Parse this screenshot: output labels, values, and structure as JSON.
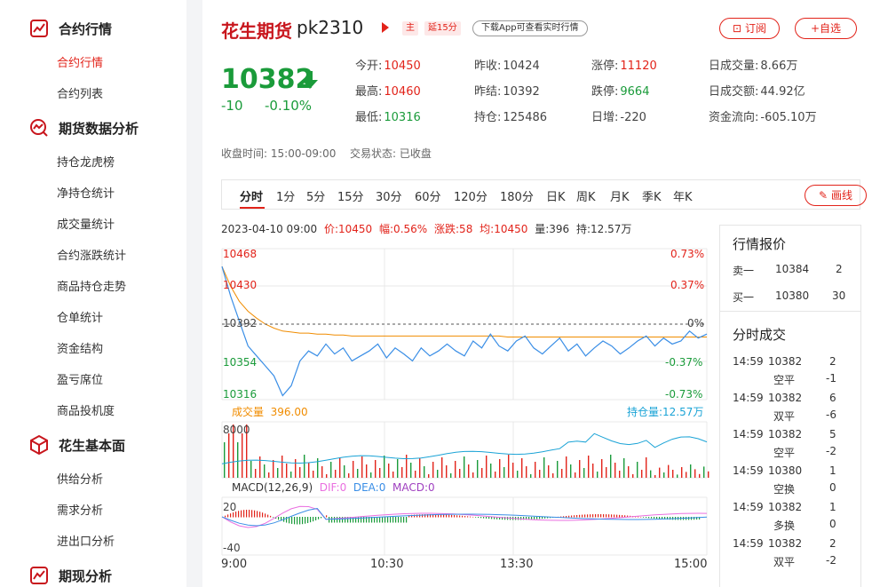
{
  "sidebar": {
    "sections": [
      {
        "title": "合约行情",
        "items": [
          "合约行情",
          "合约列表"
        ]
      },
      {
        "title": "期货数据分析",
        "items": [
          "持仓龙虎榜",
          "净持仓统计",
          "成交量统计",
          "合约涨跌统计",
          "商品持仓走势",
          "仓单统计",
          "资金结构",
          "盈亏席位",
          "商品投机度"
        ]
      },
      {
        "title": "花生基本面",
        "items": [
          "供给分析",
          "需求分析",
          "进出口分析"
        ]
      },
      {
        "title": "期现分析",
        "items": []
      }
    ],
    "active_item": "合约行情"
  },
  "header": {
    "name": "花生期货",
    "code": "pk2310",
    "tag_main": "主",
    "tag_delay": "延15分",
    "app_pill": "下载App可查看实时行情",
    "subscribe_label": "订阅",
    "watchlist_label": "+自选"
  },
  "quote": {
    "price": "10382",
    "change": "-10",
    "change_pct": "-0.10%",
    "fields": [
      {
        "label": "今开:",
        "value": "10450",
        "color": "red"
      },
      {
        "label": "昨收:",
        "value": "10424",
        "color": "normal"
      },
      {
        "label": "涨停:",
        "value": "11120",
        "color": "red"
      },
      {
        "label": "日成交量:",
        "value": "8.66万",
        "color": "normal"
      },
      {
        "label": "最高:",
        "value": "10460",
        "color": "red"
      },
      {
        "label": "昨结:",
        "value": "10392",
        "color": "normal"
      },
      {
        "label": "跌停:",
        "value": "9664",
        "color": "green"
      },
      {
        "label": "日成交额:",
        "value": "44.92亿",
        "color": "normal"
      },
      {
        "label": "最低:",
        "value": "10316",
        "color": "green"
      },
      {
        "label": "持仓:",
        "value": "125486",
        "color": "normal"
      },
      {
        "label": "日增:",
        "value": "-220",
        "color": "normal"
      },
      {
        "label": "资金流向:",
        "value": "-605.10万",
        "color": "normal"
      }
    ],
    "close_time_label": "收盘时间:",
    "close_time": "15:00-09:00",
    "trade_status_label": "交易状态:",
    "trade_status": "已收盘"
  },
  "tabs": [
    "分时",
    "1分",
    "5分",
    "15分",
    "30分",
    "60分",
    "120分",
    "180分",
    "日K",
    "周K",
    "月K",
    "季K",
    "年K"
  ],
  "active_tab": "分时",
  "draw_label": "画线",
  "infoline": {
    "time": "2023-04-10 09:00",
    "price": "价:10450",
    "amp": "幅:0.56%",
    "chg": "涨跌:58",
    "avg": "均:10450",
    "vol": "量:396",
    "oi": "持:12.57万"
  },
  "chart_labels": {
    "p1": "10468",
    "p2": "10430",
    "p3": "10392",
    "p4": "10354",
    "p5": "10316",
    "r1": "0.73%",
    "r2": "0.37%",
    "r3": "0%",
    "r4": "-0.37%",
    "r5": "-0.73%",
    "vol_label": "成交量",
    "vol_value": "396.00",
    "oi_label": "持仓量:",
    "oi_value": "12.57万",
    "vol_max": "8000",
    "macd": "MACD(12,26,9)",
    "dif": "DIF:0",
    "dea": "DEA:0",
    "macdv": "MACD:0",
    "macd_top": "20",
    "macd_bottom": "-40",
    "t1": "9:00",
    "t2": "10:30",
    "t3": "13:30",
    "t4": "15:00"
  },
  "chart_data": {
    "type": "line",
    "x_ticks": [
      "9:00",
      "10:30",
      "13:30",
      "15:00"
    ],
    "ylim": [
      10316,
      10468
    ],
    "pct_ticks": [
      "0.73%",
      "0.37%",
      "0%",
      "-0.37%",
      "-0.73%"
    ],
    "series": [
      {
        "name": "价",
        "values": [
          10450,
          10420,
          10395,
          10370,
          10360,
          10350,
          10340,
          10320,
          10330,
          10355,
          10365,
          10360,
          10372,
          10362,
          10368,
          10355,
          10360,
          10365,
          10372,
          10358,
          10368,
          10362,
          10355,
          10368,
          10360,
          10365,
          10372,
          10365,
          10360,
          10375,
          10368,
          10382,
          10370,
          10365,
          10375,
          10380,
          10368,
          10362,
          10370,
          10378,
          10365,
          10372,
          10360,
          10368,
          10375,
          10370,
          10362,
          10368,
          10375,
          10380,
          10370,
          10378,
          10372,
          10375,
          10385,
          10378,
          10382
        ]
      },
      {
        "name": "均",
        "values": [
          10450,
          10430,
          10415,
          10405,
          10398,
          10392,
          10388,
          10385,
          10384,
          10383,
          10383,
          10382,
          10382,
          10381,
          10381,
          10380,
          10380,
          10380,
          10380,
          10380,
          10380,
          10380,
          10380,
          10380,
          10380,
          10380,
          10380,
          10380,
          10380,
          10380,
          10380,
          10380,
          10380,
          10379,
          10379,
          10379,
          10379,
          10379,
          10379,
          10379,
          10379,
          10379,
          10379,
          10379,
          10379,
          10379,
          10379,
          10379,
          10379,
          10379,
          10379,
          10379,
          10379,
          10379,
          10379,
          10379,
          10379
        ]
      }
    ],
    "volume_ylim": [
      0,
      8000
    ],
    "macd_ylim": [
      -40,
      20
    ]
  },
  "panel": {
    "quote_title": "行情报价",
    "sell1_label": "卖一",
    "sell1_price": "10384",
    "sell1_vol": "2",
    "buy1_label": "买一",
    "buy1_price": "10380",
    "buy1_vol": "30",
    "ticks_title": "分时成交",
    "ticks": [
      {
        "time": "14:59",
        "price": "10382",
        "vol": "2",
        "type": "空平",
        "oi": "-1",
        "price_color": "green",
        "vol_color": "red",
        "type_color": "red"
      },
      {
        "time": "14:59",
        "price": "10382",
        "vol": "6",
        "type": "双平",
        "oi": "-6",
        "price_color": "green",
        "vol_color": "red",
        "type_color": "red"
      },
      {
        "time": "14:59",
        "price": "10382",
        "vol": "5",
        "type": "空平",
        "oi": "-2",
        "price_color": "green",
        "vol_color": "red",
        "type_color": "red"
      },
      {
        "time": "14:59",
        "price": "10380",
        "vol": "1",
        "type": "空换",
        "oi": "0",
        "price_color": "green",
        "vol_color": "green",
        "type_color": "green"
      },
      {
        "time": "14:59",
        "price": "10382",
        "vol": "1",
        "type": "多换",
        "oi": "0",
        "price_color": "green",
        "vol_color": "red",
        "type_color": "red"
      },
      {
        "time": "14:59",
        "price": "10382",
        "vol": "2",
        "type": "双平",
        "oi": "-2",
        "price_color": "green",
        "vol_color": "red",
        "type_color": "red"
      }
    ]
  }
}
